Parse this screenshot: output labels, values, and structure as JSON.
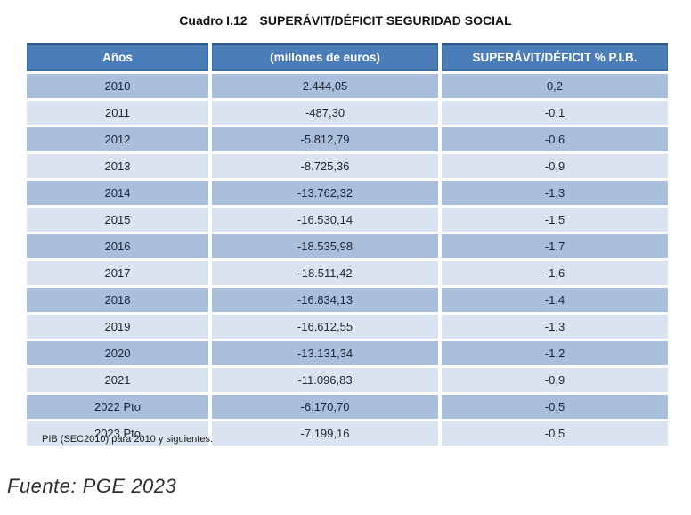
{
  "page": {
    "caption_prefix": "Cuadro I.12",
    "caption_title": "SUPERÁVIT/DÉFICIT SEGURIDAD SOCIAL",
    "footnote": "PIB (SEC2010) para 2010 y siguientes.",
    "source": "Fuente: PGE 2023"
  },
  "table": {
    "columns": [
      "Años",
      "(millones de euros)",
      "SUPERÁVIT/DÉFICIT % P.I.B."
    ],
    "rows": [
      [
        "2010",
        "2.444,05",
        "0,2"
      ],
      [
        "2011",
        "-487,30",
        "-0,1"
      ],
      [
        "2012",
        "-5.812,79",
        "-0,6"
      ],
      [
        "2013",
        "-8.725,36",
        "-0,9"
      ],
      [
        "2014",
        "-13.762,32",
        "-1,3"
      ],
      [
        "2015",
        "-16.530,14",
        "-1,5"
      ],
      [
        "2016",
        "-18.535,98",
        "-1,7"
      ],
      [
        "2017",
        "-18.511,42",
        "-1,6"
      ],
      [
        "2018",
        "-16.834,13",
        "-1,4"
      ],
      [
        "2019",
        "-16.612,55",
        "-1,3"
      ],
      [
        "2020",
        "-13.131,34",
        "-1,2"
      ],
      [
        "2021",
        "-11.096,83",
        "-0,9"
      ],
      [
        "2022 Pto",
        "-6.170,70",
        "-0,5"
      ],
      [
        "2023 Pto",
        "-7.199,16",
        "-0,5"
      ]
    ]
  },
  "colors": {
    "header_bg": "#4B7EB9",
    "header_border_top": "#2D5A87",
    "header_border_edge": "#3A6B9E",
    "header_text": "#FFFFFF",
    "row_dark": "#AABFDC",
    "row_light": "#DAE3F0",
    "cell_text": "#1C2433"
  },
  "chart_data": {
    "type": "table",
    "title": "Cuadro I.12 SUPERÁVIT/DÉFICIT SEGURIDAD SOCIAL",
    "columns": [
      "Años",
      "(millones de euros)",
      "SUPERÁVIT/DÉFICIT % P.I.B."
    ],
    "categories": [
      "2010",
      "2011",
      "2012",
      "2013",
      "2014",
      "2015",
      "2016",
      "2017",
      "2018",
      "2019",
      "2020",
      "2021",
      "2022 Pto",
      "2023 Pto"
    ],
    "series": [
      {
        "name": "millones de euros",
        "values": [
          2444.05,
          -487.3,
          -5812.79,
          -8725.36,
          -13762.32,
          -16530.14,
          -18535.98,
          -18511.42,
          -16834.13,
          -16612.55,
          -13131.34,
          -11096.83,
          -6170.7,
          -7199.16
        ]
      },
      {
        "name": "superávit/déficit % PIB",
        "values": [
          0.2,
          -0.1,
          -0.6,
          -0.9,
          -1.3,
          -1.5,
          -1.7,
          -1.6,
          -1.4,
          -1.3,
          -1.2,
          -0.9,
          -0.5,
          -0.5
        ]
      }
    ],
    "footnote": "PIB (SEC2010) para 2010 y siguientes.",
    "source": "Fuente: PGE 2023"
  }
}
